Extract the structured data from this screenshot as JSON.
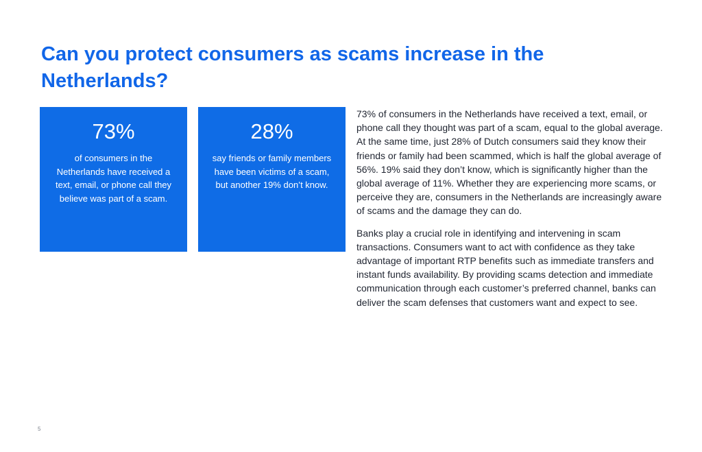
{
  "page": {
    "title": "Can you protect consumers as scams increase in the Netherlands?",
    "page_number": "5"
  },
  "stats": [
    {
      "value": "73%",
      "description": "of consumers in the Netherlands have received a text, email, or phone call they believe was part of a scam."
    },
    {
      "value": "28%",
      "description": "say friends or family members have been victims of a scam, but another 19% don’t know."
    }
  ],
  "body": {
    "paragraphs": [
      "73% of consumers in the Netherlands have received a text, email, or phone call they thought was part of a scam, equal to the global average. At the same time, just 28% of Dutch consumers said they know their friends or family had been scammed, which is half the global average of 56%. 19% said they don’t know, which is significantly higher than the global average of 11%. Whether they are experiencing more scams, or perceive they are, consumers in the Netherlands are increasingly aware of scams and the damage they can do.",
      "Banks play a crucial role in identifying and intervening in scam transactions. Consumers want to act with confidence as they take advantage of important RTP benefits such as immediate transfers and instant funds availability. By providing scams detection and immediate communication through each customer’s preferred channel, banks can deliver the scam defenses that customers want and expect to see."
    ]
  },
  "colors": {
    "accent": "#1166e8",
    "card_background": "#0f6ce6",
    "body_text": "#1f2430"
  }
}
